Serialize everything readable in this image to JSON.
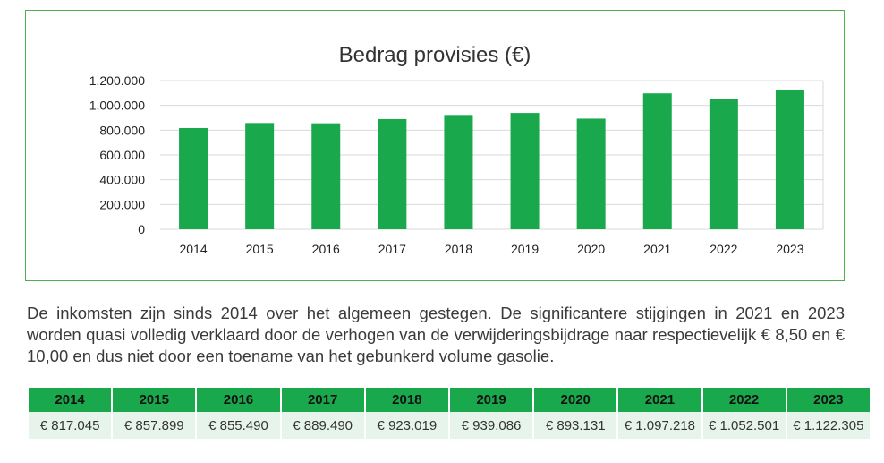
{
  "colors": {
    "bar": "#1aa84c",
    "frame_border": "#4db04d",
    "gridline": "#d9d9d9",
    "header_bg": "#1aa84c",
    "cell_bg": "#e7f4ec"
  },
  "chart_data": {
    "type": "bar",
    "title": "Bedrag provisies (€)",
    "xlabel": "",
    "ylabel": "",
    "categories": [
      "2014",
      "2015",
      "2016",
      "2017",
      "2018",
      "2019",
      "2020",
      "2021",
      "2022",
      "2023"
    ],
    "values": [
      817045,
      857899,
      855490,
      889490,
      923019,
      939086,
      893131,
      1097218,
      1052501,
      1122305
    ],
    "ylim": [
      0,
      1200000
    ],
    "yticks": [
      0,
      200000,
      400000,
      600000,
      800000,
      1000000,
      1200000
    ],
    "ytick_labels": [
      "0",
      "200.000",
      "400.000",
      "600.000",
      "800.000",
      "1.000.000",
      "1.200.000"
    ],
    "grid": true,
    "legend": false
  },
  "paragraph": "De inkomsten zijn sinds 2014 over het algemeen gestegen. De significantere stijgingen in 2021 en 2023 worden quasi volledig verklaard door de verhogen van de verwijderingsbijdrage naar respectievelijk € 8,50 en € 10,00 en dus niet door een toename van het gebunkerd volume gasolie.",
  "table": {
    "headers": [
      "2014",
      "2015",
      "2016",
      "2017",
      "2018",
      "2019",
      "2020",
      "2021",
      "2022",
      "2023"
    ],
    "values": [
      "€ 817.045",
      "€ 857.899",
      "€ 855.490",
      "€ 889.490",
      "€ 923.019",
      "€ 939.086",
      "€ 893.131",
      "€ 1.097.218",
      "€ 1.052.501",
      "€ 1.122.305"
    ]
  }
}
